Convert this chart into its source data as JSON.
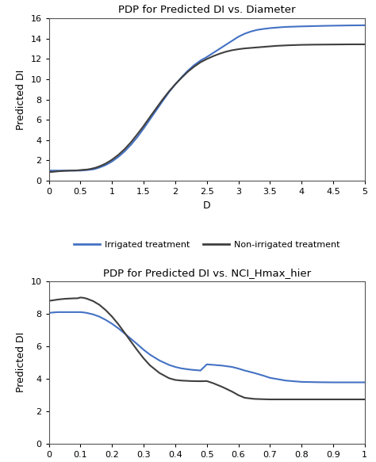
{
  "plot1": {
    "title": "PDP for Predicted DI vs. Diameter",
    "xlabel": "D",
    "ylabel": "Predicted DI",
    "xlim": [
      0,
      5
    ],
    "ylim": [
      0,
      16
    ],
    "xticks": [
      0,
      0.5,
      1,
      1.5,
      2,
      2.5,
      3,
      3.5,
      4,
      4.5,
      5
    ],
    "xticklabels": [
      "0",
      "0.5",
      "1",
      "1.5",
      "2",
      "2.5",
      "3",
      "3.5",
      "4",
      "4.5",
      "5"
    ],
    "yticks": [
      0,
      2,
      4,
      6,
      8,
      10,
      12,
      14,
      16
    ],
    "yticklabels": [
      "0",
      "2",
      "4",
      "6",
      "8",
      "10",
      "12",
      "14",
      "16"
    ],
    "irrigated_x": [
      0,
      0.05,
      0.1,
      0.15,
      0.2,
      0.25,
      0.3,
      0.35,
      0.4,
      0.45,
      0.5,
      0.55,
      0.6,
      0.65,
      0.7,
      0.75,
      0.8,
      0.85,
      0.9,
      0.95,
      1.0,
      1.1,
      1.2,
      1.3,
      1.4,
      1.5,
      1.6,
      1.7,
      1.8,
      1.9,
      2.0,
      2.1,
      2.2,
      2.3,
      2.4,
      2.5,
      2.6,
      2.7,
      2.8,
      2.9,
      3.0,
      3.1,
      3.2,
      3.3,
      3.4,
      3.5,
      3.6,
      3.7,
      3.8,
      3.9,
      4.0,
      4.2,
      4.4,
      4.6,
      4.8,
      5.0
    ],
    "irrigated_y": [
      1.0,
      1.0,
      1.0,
      1.0,
      1.0,
      1.0,
      1.0,
      1.0,
      1.0,
      1.0,
      1.0,
      1.02,
      1.05,
      1.08,
      1.12,
      1.2,
      1.3,
      1.42,
      1.55,
      1.72,
      1.9,
      2.35,
      2.9,
      3.55,
      4.3,
      5.15,
      6.05,
      6.95,
      7.85,
      8.72,
      9.5,
      10.2,
      10.85,
      11.4,
      11.85,
      12.2,
      12.6,
      13.0,
      13.4,
      13.8,
      14.2,
      14.5,
      14.72,
      14.88,
      14.97,
      15.05,
      15.1,
      15.15,
      15.18,
      15.2,
      15.22,
      15.25,
      15.28,
      15.3,
      15.32,
      15.33
    ],
    "non_irrigated_x": [
      0,
      0.05,
      0.1,
      0.15,
      0.2,
      0.25,
      0.3,
      0.35,
      0.4,
      0.45,
      0.5,
      0.55,
      0.6,
      0.65,
      0.7,
      0.75,
      0.8,
      0.85,
      0.9,
      0.95,
      1.0,
      1.1,
      1.2,
      1.3,
      1.4,
      1.5,
      1.6,
      1.7,
      1.8,
      1.9,
      2.0,
      2.1,
      2.2,
      2.3,
      2.4,
      2.5,
      2.6,
      2.7,
      2.8,
      2.9,
      3.0,
      3.1,
      3.2,
      3.3,
      3.4,
      3.5,
      3.6,
      3.7,
      3.8,
      3.9,
      4.0,
      4.2,
      4.4,
      4.6,
      4.8,
      5.0
    ],
    "non_irrigated_y": [
      0.85,
      0.87,
      0.9,
      0.93,
      0.95,
      0.97,
      0.98,
      1.0,
      1.0,
      1.02,
      1.05,
      1.08,
      1.1,
      1.15,
      1.22,
      1.3,
      1.42,
      1.55,
      1.7,
      1.88,
      2.08,
      2.55,
      3.12,
      3.8,
      4.58,
      5.4,
      6.28,
      7.15,
      8.0,
      8.8,
      9.5,
      10.15,
      10.75,
      11.25,
      11.68,
      12.0,
      12.28,
      12.52,
      12.72,
      12.87,
      12.97,
      13.05,
      13.1,
      13.15,
      13.2,
      13.25,
      13.3,
      13.33,
      13.36,
      13.38,
      13.4,
      13.42,
      13.43,
      13.44,
      13.45,
      13.45
    ],
    "irrigated_color": "#4472C4",
    "non_irrigated_color": "#3f3f3f"
  },
  "plot2": {
    "title": "PDP for Predicted DI vs. NCI_Hmax_hier",
    "xlabel": "NCI_Hmax_hier",
    "ylabel": "Predicted DI",
    "xlim": [
      0,
      1
    ],
    "ylim": [
      0,
      10
    ],
    "xticks": [
      0,
      0.1,
      0.2,
      0.3,
      0.4,
      0.5,
      0.6,
      0.7,
      0.8,
      0.9,
      1.0
    ],
    "xticklabels": [
      "0",
      "0.1",
      "0.2",
      "0.3",
      "0.4",
      "0.5",
      "0.6",
      "0.7",
      "0.8",
      "0.9",
      "1"
    ],
    "yticks": [
      0,
      2,
      4,
      6,
      8,
      10
    ],
    "yticklabels": [
      "0",
      "2",
      "4",
      "6",
      "8",
      "10"
    ],
    "irrigated_x": [
      0,
      0.01,
      0.02,
      0.03,
      0.04,
      0.05,
      0.06,
      0.07,
      0.08,
      0.09,
      0.1,
      0.11,
      0.12,
      0.14,
      0.16,
      0.18,
      0.2,
      0.22,
      0.24,
      0.26,
      0.28,
      0.3,
      0.32,
      0.35,
      0.38,
      0.4,
      0.42,
      0.45,
      0.48,
      0.5,
      0.52,
      0.55,
      0.58,
      0.6,
      0.62,
      0.65,
      0.68,
      0.7,
      0.75,
      0.8,
      0.85,
      0.9,
      0.95,
      1.0
    ],
    "irrigated_y": [
      8.05,
      8.07,
      8.09,
      8.1,
      8.1,
      8.1,
      8.1,
      8.1,
      8.1,
      8.1,
      8.1,
      8.08,
      8.05,
      7.96,
      7.82,
      7.62,
      7.38,
      7.1,
      6.78,
      6.45,
      6.12,
      5.78,
      5.48,
      5.12,
      4.85,
      4.72,
      4.63,
      4.55,
      4.5,
      4.88,
      4.85,
      4.8,
      4.72,
      4.62,
      4.5,
      4.35,
      4.18,
      4.05,
      3.88,
      3.8,
      3.78,
      3.77,
      3.77,
      3.77
    ],
    "non_irrigated_x": [
      0,
      0.01,
      0.02,
      0.03,
      0.04,
      0.05,
      0.06,
      0.07,
      0.08,
      0.09,
      0.1,
      0.11,
      0.12,
      0.14,
      0.16,
      0.18,
      0.2,
      0.22,
      0.24,
      0.26,
      0.28,
      0.3,
      0.32,
      0.35,
      0.38,
      0.4,
      0.42,
      0.45,
      0.48,
      0.5,
      0.52,
      0.55,
      0.58,
      0.6,
      0.62,
      0.65,
      0.68,
      0.7,
      0.75,
      0.8,
      0.85,
      0.9,
      0.95,
      1.0
    ],
    "non_irrigated_y": [
      8.8,
      8.82,
      8.85,
      8.88,
      8.9,
      8.92,
      8.93,
      8.94,
      8.95,
      8.95,
      9.0,
      8.98,
      8.93,
      8.78,
      8.55,
      8.22,
      7.82,
      7.35,
      6.82,
      6.28,
      5.75,
      5.25,
      4.82,
      4.35,
      4.03,
      3.92,
      3.88,
      3.85,
      3.84,
      3.85,
      3.72,
      3.48,
      3.2,
      2.98,
      2.82,
      2.75,
      2.73,
      2.72,
      2.72,
      2.72,
      2.72,
      2.72,
      2.72,
      2.72
    ],
    "irrigated_color": "#4472C4",
    "non_irrigated_color": "#3f3f3f"
  },
  "legend_irrigated": "Irrigated treatment",
  "legend_non_irrigated": "Non-irrigated treatment",
  "bg_color": "#ffffff",
  "line_width": 1.5
}
